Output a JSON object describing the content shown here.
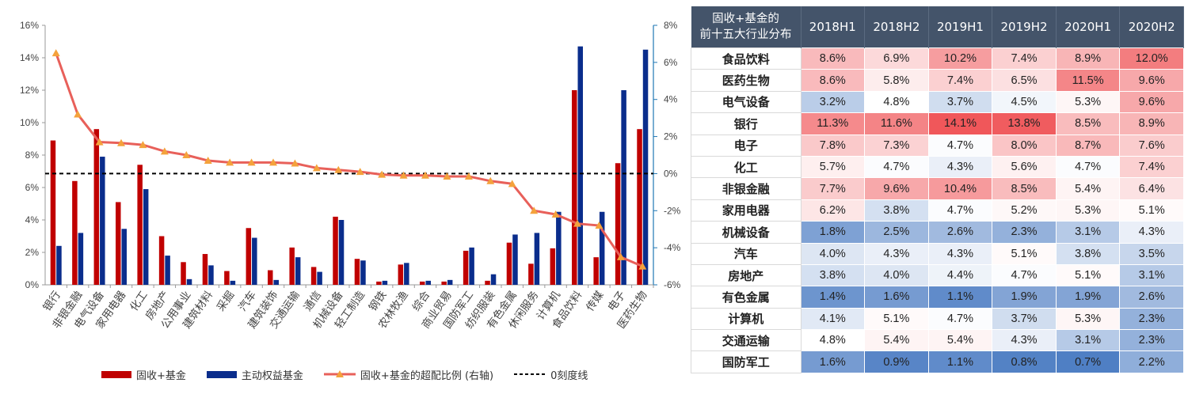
{
  "chart_data": [
    {
      "type": "bar",
      "categories": [
        "银行",
        "非银金融",
        "电气设备",
        "家用电器",
        "化工",
        "房地产",
        "公用事业",
        "建筑材料",
        "采掘",
        "汽车",
        "建筑装饰",
        "交通运输",
        "通信",
        "机械设备",
        "轻工制造",
        "钢铁",
        "农林牧渔",
        "综合",
        "商业贸易",
        "国防军工",
        "纺织服装",
        "有色金属",
        "休闲服务",
        "计算机",
        "食品饮料",
        "传媒",
        "电子",
        "医药生物"
      ],
      "series": [
        {
          "name": "固收+基金",
          "axis": "left",
          "type": "bar",
          "color": "#c00000",
          "values": [
            8.9,
            6.4,
            9.6,
            5.1,
            7.4,
            3.0,
            1.4,
            1.9,
            0.85,
            3.5,
            0.9,
            2.3,
            1.1,
            4.2,
            1.6,
            0.2,
            1.25,
            0.2,
            0.2,
            2.1,
            0.25,
            2.6,
            1.3,
            2.25,
            12.0,
            1.7,
            7.5,
            9.6
          ]
        },
        {
          "name": "主动权益基金",
          "axis": "left",
          "type": "bar",
          "color": "#0a2d8c",
          "values": [
            2.4,
            3.2,
            7.9,
            3.45,
            5.9,
            1.8,
            0.35,
            1.2,
            0.25,
            2.9,
            0.3,
            1.7,
            0.8,
            4.0,
            1.5,
            0.25,
            1.35,
            0.25,
            0.3,
            2.3,
            0.65,
            3.1,
            3.2,
            4.5,
            14.7,
            4.5,
            12.0,
            14.5
          ]
        },
        {
          "name": "固收+基金的超配比例 (右轴)",
          "axis": "right",
          "type": "line",
          "color": "#e8605a",
          "marker_color": "#f4a23c",
          "values": [
            6.5,
            3.2,
            1.7,
            1.65,
            1.55,
            1.2,
            1.0,
            0.7,
            0.6,
            0.6,
            0.6,
            0.55,
            0.3,
            0.2,
            0.1,
            -0.05,
            -0.1,
            -0.1,
            -0.15,
            -0.15,
            -0.4,
            -0.55,
            -2.0,
            -2.2,
            -2.7,
            -2.8,
            -4.5,
            -5.0
          ]
        }
      ],
      "reference_line": {
        "name": "0刻度线",
        "axis": "right",
        "value": 0,
        "style": "dashed",
        "color": "#000000"
      },
      "ylim_left": [
        0,
        16
      ],
      "ylim_right": [
        -6,
        8
      ],
      "yticks_left": [
        "0%",
        "2%",
        "4%",
        "6%",
        "8%",
        "10%",
        "12%",
        "14%",
        "16%"
      ],
      "yticks_right": [
        "-6%",
        "-4%",
        "-2%",
        "0%",
        "2%",
        "4%",
        "6%",
        "8%"
      ],
      "legend_position": "bottom"
    },
    {
      "type": "table",
      "header_title_line1": "固收+基金的",
      "header_title_line2": "前十五大行业分布",
      "columns": [
        "2018H1",
        "2018H2",
        "2019H1",
        "2019H2",
        "2020H1",
        "2020H2"
      ],
      "rows": [
        {
          "industry": "食品饮料",
          "values": [
            "8.6%",
            "6.9%",
            "10.2%",
            "7.4%",
            "8.9%",
            "12.0%"
          ]
        },
        {
          "industry": "医药生物",
          "values": [
            "8.6%",
            "5.8%",
            "7.4%",
            "6.5%",
            "11.5%",
            "9.6%"
          ]
        },
        {
          "industry": "电气设备",
          "values": [
            "3.2%",
            "4.8%",
            "3.7%",
            "4.5%",
            "5.3%",
            "9.6%"
          ]
        },
        {
          "industry": "银行",
          "values": [
            "11.3%",
            "11.6%",
            "14.1%",
            "13.8%",
            "8.5%",
            "8.9%"
          ]
        },
        {
          "industry": "电子",
          "values": [
            "7.8%",
            "7.3%",
            "4.7%",
            "8.0%",
            "8.7%",
            "7.6%"
          ]
        },
        {
          "industry": "化工",
          "values": [
            "5.7%",
            "4.7%",
            "4.3%",
            "5.6%",
            "4.7%",
            "7.4%"
          ]
        },
        {
          "industry": "非银金融",
          "values": [
            "7.7%",
            "9.6%",
            "10.4%",
            "8.5%",
            "5.4%",
            "6.4%"
          ]
        },
        {
          "industry": "家用电器",
          "values": [
            "6.2%",
            "3.8%",
            "4.7%",
            "5.2%",
            "5.3%",
            "5.1%"
          ]
        },
        {
          "industry": "机械设备",
          "values": [
            "1.8%",
            "2.5%",
            "2.6%",
            "2.3%",
            "3.1%",
            "4.3%"
          ]
        },
        {
          "industry": "汽车",
          "values": [
            "4.0%",
            "4.3%",
            "4.3%",
            "5.1%",
            "3.8%",
            "3.5%"
          ]
        },
        {
          "industry": "房地产",
          "values": [
            "3.8%",
            "4.0%",
            "4.4%",
            "4.7%",
            "5.1%",
            "3.1%"
          ]
        },
        {
          "industry": "有色金属",
          "values": [
            "1.4%",
            "1.6%",
            "1.1%",
            "1.9%",
            "1.9%",
            "2.6%"
          ]
        },
        {
          "industry": "计算机",
          "values": [
            "4.1%",
            "5.1%",
            "4.7%",
            "3.7%",
            "5.3%",
            "2.3%"
          ]
        },
        {
          "industry": "交通运输",
          "values": [
            "4.8%",
            "5.4%",
            "5.4%",
            "4.3%",
            "3.1%",
            "2.3%"
          ]
        },
        {
          "industry": "国防军工",
          "values": [
            "1.6%",
            "0.9%",
            "1.1%",
            "0.8%",
            "0.7%",
            "2.2%"
          ]
        }
      ],
      "color_scale": {
        "low": "#4f7fc4",
        "mid": "#ffffff",
        "high": "#f0575a"
      }
    }
  ]
}
